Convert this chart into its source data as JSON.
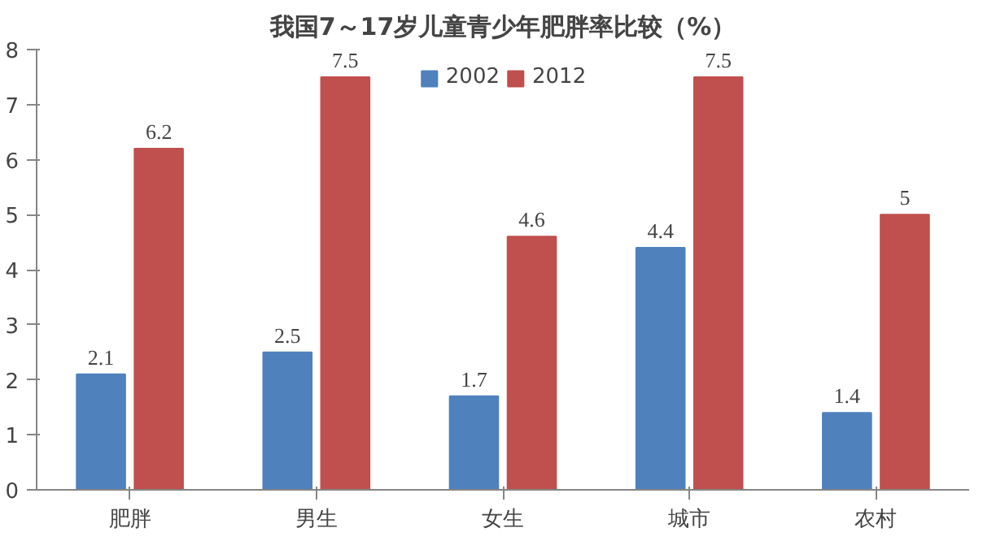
{
  "chart_data": {
    "type": "bar",
    "title": "我国7～17岁儿童青少年肥胖率比较（%）",
    "categories": [
      "肥胖",
      "男生",
      "女生",
      "城市",
      "农村"
    ],
    "series": [
      {
        "name": "2002",
        "color": "#4f81bd",
        "values": [
          2.1,
          2.5,
          1.7,
          4.4,
          1.4
        ]
      },
      {
        "name": "2012",
        "color": "#c0504d",
        "values": [
          6.2,
          7.5,
          4.6,
          7.5,
          5
        ]
      }
    ],
    "ylim": [
      0,
      8
    ],
    "yticks": [
      0,
      1,
      2,
      3,
      4,
      5,
      6,
      7,
      8
    ],
    "grid": false,
    "legend": "top",
    "data_labels": true
  }
}
